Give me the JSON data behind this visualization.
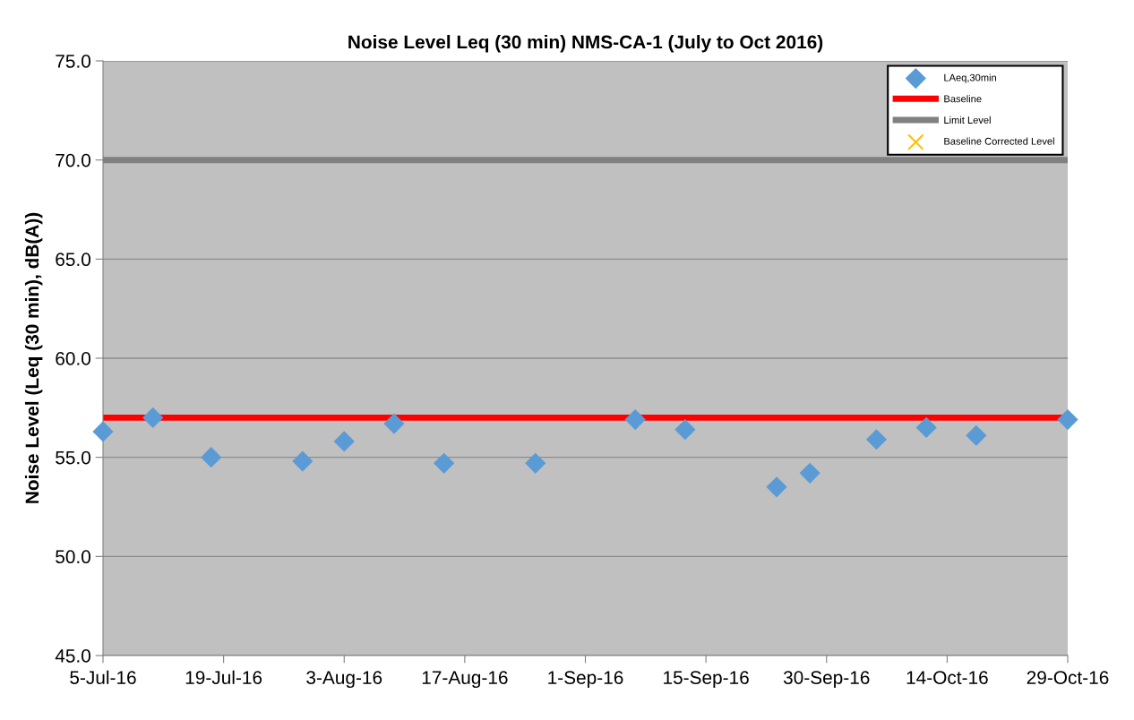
{
  "chart_data": {
    "type": "scatter",
    "title": "Noise Level Leq (30 min) NMS-CA-1 (July to Oct 2016)",
    "ylabel": "Noise Level (Leq (30 min), dB(A))",
    "x": [
      "2016-07-05",
      "2016-07-11",
      "2016-07-18",
      "2016-07-29",
      "2016-08-03",
      "2016-08-09",
      "2016-08-15",
      "2016-08-26",
      "2016-09-07",
      "2016-09-13",
      "2016-09-24",
      "2016-09-28",
      "2016-10-06",
      "2016-10-12",
      "2016-10-18",
      "2016-10-29"
    ],
    "series": [
      {
        "name": "LAeq,30min",
        "color": "#5b9bd5",
        "marker": "diamond",
        "values": [
          56.3,
          57.0,
          55.0,
          54.8,
          55.8,
          56.7,
          54.7,
          54.7,
          56.9,
          56.4,
          53.5,
          54.2,
          55.9,
          56.5,
          56.1,
          56.9
        ]
      },
      {
        "name": "Baseline Corrected Level",
        "color": "#ffc000",
        "marker": "cross",
        "values": [
          null,
          null,
          null,
          null,
          null,
          null,
          null,
          null,
          null,
          null,
          null,
          null,
          null,
          null,
          null,
          null
        ]
      }
    ],
    "ref_lines": [
      {
        "axis": "y",
        "value": 57.0,
        "label": "Baseline",
        "color": "#ff0000"
      },
      {
        "axis": "y",
        "value": 70.0,
        "label": "Limit Level",
        "color": "#808080"
      }
    ],
    "xlim": [
      "2016-07-05",
      "2016-10-29"
    ],
    "xticks": [
      {
        "value": "2016-07-05",
        "label": "5-Jul-16"
      },
      {
        "value": "2016-07-19T12:00",
        "label": "19-Jul-16"
      },
      {
        "value": "2016-08-03",
        "label": "3-Aug-16"
      },
      {
        "value": "2016-08-17T12:00",
        "label": "17-Aug-16"
      },
      {
        "value": "2016-09-01",
        "label": "1-Sep-16"
      },
      {
        "value": "2016-09-15T12:00",
        "label": "15-Sep-16"
      },
      {
        "value": "2016-09-30",
        "label": "30-Sep-16"
      },
      {
        "value": "2016-10-14T12:00",
        "label": "14-Oct-16"
      },
      {
        "value": "2016-10-29",
        "label": "29-Oct-16"
      }
    ],
    "ylim": [
      45.0,
      75.0
    ],
    "yticks": [
      {
        "value": 45,
        "label": "45.0"
      },
      {
        "value": 50,
        "label": "50.0"
      },
      {
        "value": 55,
        "label": "55.0"
      },
      {
        "value": 60,
        "label": "60.0"
      },
      {
        "value": 65,
        "label": "65.0"
      },
      {
        "value": 70,
        "label": "70.0"
      },
      {
        "value": 75,
        "label": "75.0"
      }
    ],
    "grid": "y",
    "legend": "top right"
  }
}
